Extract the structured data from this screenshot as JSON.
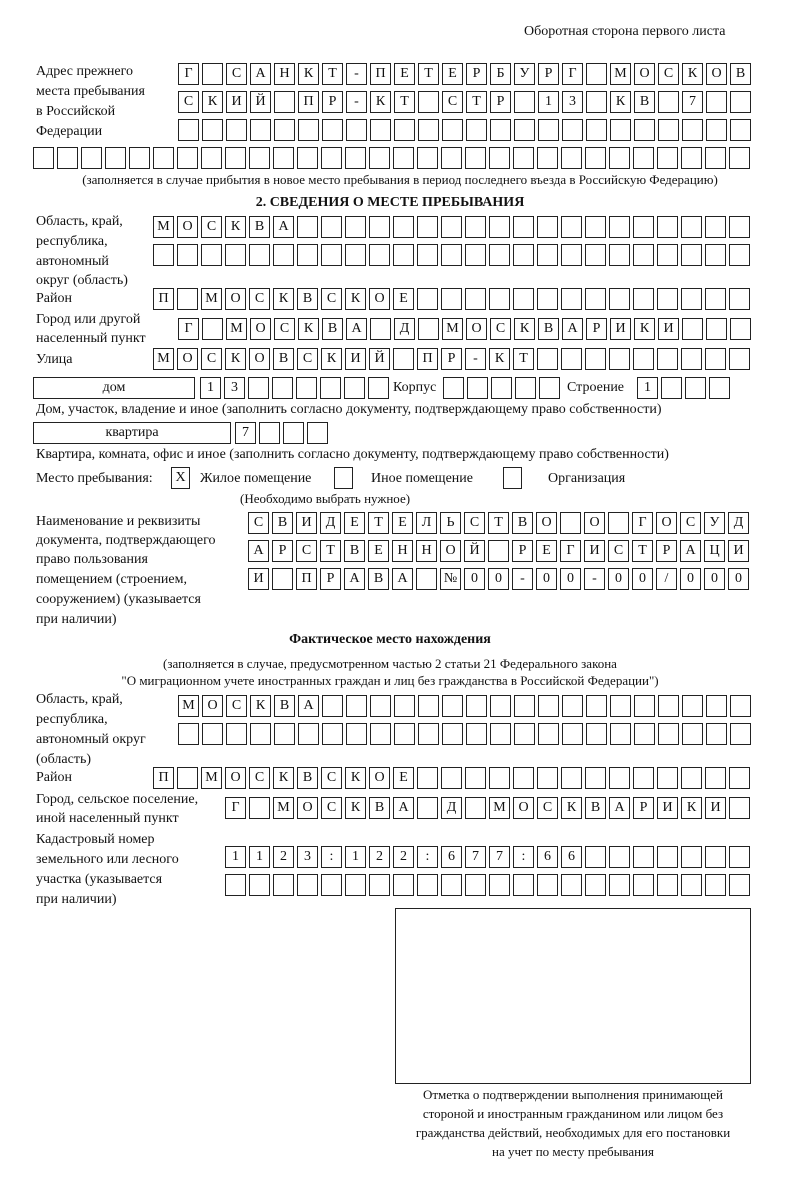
{
  "header": {
    "page_side": "Оборотная сторона первого листа"
  },
  "previous_address": {
    "label": [
      "Адрес прежнего",
      "места пребывания",
      "в Российской",
      "Федерации"
    ],
    "rows": [
      [
        "Г",
        "",
        "С",
        "А",
        "Н",
        "К",
        "Т",
        "-",
        "П",
        "Е",
        "Т",
        "Е",
        "Р",
        "Б",
        "У",
        "Р",
        "Г",
        "",
        "М",
        "О",
        "С",
        "К",
        "О",
        "В"
      ],
      [
        "С",
        "К",
        "И",
        "Й",
        "",
        "П",
        "Р",
        "-",
        "К",
        "Т",
        "",
        "С",
        "Т",
        "Р",
        "",
        "1",
        "3",
        "",
        "К",
        "В",
        "",
        "7",
        "",
        ""
      ],
      [],
      []
    ],
    "note": "(заполняется в случае прибытия в новое место пребывания в период последнего въезда в Российскую Федерацию)"
  },
  "section2": {
    "title": "2. СВЕДЕНИЯ О МЕСТЕ ПРЕБЫВАНИЯ",
    "region_label": [
      "Область, край,",
      "республика,",
      "автономный",
      "округ (область)"
    ],
    "region_rows": [
      [
        "М",
        "О",
        "С",
        "К",
        "В",
        "А"
      ],
      []
    ],
    "district_label": "Район",
    "district": [
      "П",
      "",
      "М",
      "О",
      "С",
      "К",
      "В",
      "С",
      "К",
      "О",
      "Е"
    ],
    "city_label": [
      "Город или другой",
      "населенный пункт"
    ],
    "city": [
      "Г",
      "",
      "М",
      "О",
      "С",
      "К",
      "В",
      "А",
      "",
      "Д",
      "",
      "М",
      "О",
      "С",
      "К",
      "В",
      "А",
      "Р",
      "И",
      "К",
      "И"
    ],
    "street_label": "Улица",
    "street": [
      "М",
      "О",
      "С",
      "К",
      "О",
      "В",
      "С",
      "К",
      "И",
      "Й",
      "",
      "П",
      "Р",
      "-",
      "К",
      "Т"
    ],
    "house_type": "дом",
    "house": [
      "1",
      "3"
    ],
    "korpus_label": "Корпус",
    "korpus": [],
    "stroenie_label": "Строение",
    "stroenie": [
      "1"
    ],
    "house_note": "Дом, участок, владение и иное (заполнить согласно документу, подтверждающему право собственности)",
    "apt_type": "квартира",
    "apt": [
      "7"
    ],
    "apt_note": "Квартира, комната, офис и иное (заполнить согласно документу, подтверждающему право собственности)",
    "stay_label": "Место пребывания:",
    "stay_options": [
      {
        "label": "Жилое помещение",
        "mark": "X"
      },
      {
        "label": "Иное помещение",
        "mark": ""
      },
      {
        "label": "Организация",
        "mark": ""
      }
    ],
    "stay_note": "(Необходимо выбрать нужное)",
    "doc_label": [
      "Наименование и реквизиты",
      "документа, подтверждающего",
      "право пользования",
      "помещением (строением,",
      "сооружением) (указывается",
      "при наличии)"
    ],
    "doc_rows": [
      [
        "С",
        "В",
        "И",
        "Д",
        "Е",
        "Т",
        "Е",
        "Л",
        "Ь",
        "С",
        "Т",
        "В",
        "О",
        "",
        "О",
        "",
        "Г",
        "О",
        "С",
        "У",
        "Д"
      ],
      [
        "А",
        "Р",
        "С",
        "Т",
        "В",
        "Е",
        "Н",
        "Н",
        "О",
        "Й",
        "",
        "Р",
        "Е",
        "Г",
        "И",
        "С",
        "Т",
        "Р",
        "А",
        "Ц",
        "И"
      ],
      [
        "И",
        "",
        "П",
        "Р",
        "А",
        "В",
        "А",
        "",
        "№",
        "0",
        "0",
        "-",
        "0",
        "0",
        "-",
        "0",
        "0",
        "/",
        "0",
        "0",
        "0"
      ]
    ]
  },
  "actual": {
    "title": "Фактическое место нахождения",
    "note1": "(заполняется в случае, предусмотренном частью 2 статьи 21 Федерального закона",
    "note2": "\"О миграционном учете иностранных граждан и лиц без гражданства в Российской Федерации\")",
    "region_label": [
      "Область, край,",
      "республика,",
      "автономный округ",
      "(область)"
    ],
    "region_rows": [
      [
        "М",
        "О",
        "С",
        "К",
        "В",
        "А"
      ],
      []
    ],
    "district_label": "Район",
    "district": [
      "П",
      "",
      "М",
      "О",
      "С",
      "К",
      "В",
      "С",
      "К",
      "О",
      "Е"
    ],
    "city_label": [
      "Город, сельское поселение,",
      "иной населенный пункт"
    ],
    "city": [
      "Г",
      "",
      "М",
      "О",
      "С",
      "К",
      "В",
      "А",
      "",
      "Д",
      "",
      "М",
      "О",
      "С",
      "К",
      "В",
      "А",
      "Р",
      "И",
      "К",
      "И"
    ],
    "cadastral_label": [
      "Кадастровый номер",
      "земельного или лесного",
      "участка (указывается",
      "при наличии)"
    ],
    "cadastral_rows": [
      [
        "1",
        "1",
        "2",
        "3",
        ":",
        "1",
        "2",
        "2",
        ":",
        "6",
        "7",
        "7",
        ":",
        "6",
        "6"
      ],
      []
    ]
  },
  "stamp": {
    "caption": [
      "Отметка о подтверждении выполнения принимающей",
      "стороной и иностранным гражданином или лицом без",
      "гражданства действий, необходимых для его постановки",
      "на учет по месту пребывания"
    ]
  }
}
